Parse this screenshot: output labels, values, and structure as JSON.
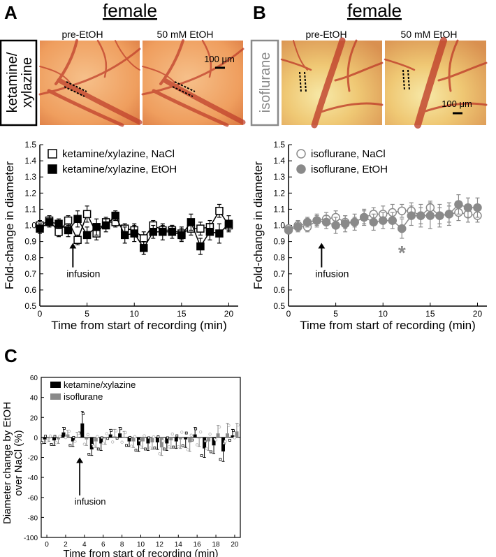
{
  "panels": {
    "A": {
      "letter": "A",
      "sex": "female",
      "anesthetic_label": [
        "ketamine/",
        "xylazine"
      ],
      "image_labels": [
        "pre-EtOH",
        "50 mM EtOH"
      ],
      "scale_bar": "100 μm"
    },
    "B": {
      "letter": "B",
      "sex": "female",
      "anesthetic_label": "isoflurane",
      "image_labels": [
        "pre-EtOH",
        "50 mM EtOH"
      ],
      "scale_bar": "100 μm",
      "significance_marker": "*"
    },
    "C": {
      "letter": "C"
    }
  },
  "colors": {
    "ketamine": "#000000",
    "isoflurane": "#8a8a8a",
    "tissue_base": "#f0a468",
    "vessel": "#c0402c"
  },
  "chart_data": [
    {
      "panel": "A",
      "type": "line",
      "x": [
        0,
        1,
        2,
        3,
        4,
        5,
        6,
        7,
        8,
        9,
        10,
        11,
        12,
        13,
        14,
        15,
        16,
        17,
        18,
        19,
        20
      ],
      "xlim": [
        0,
        21
      ],
      "xticks": [
        0,
        5,
        10,
        15,
        20
      ],
      "ylim": [
        0.5,
        1.5
      ],
      "yticks": [
        0.5,
        0.6,
        0.7,
        0.8,
        0.9,
        1.0,
        1.1,
        1.2,
        1.3,
        1.4,
        1.5
      ],
      "xlabel": "Time from start of recording (min)",
      "ylabel": "Fold-change in diameter",
      "annotation": "infusion",
      "annotation_x": 3.5,
      "series": [
        {
          "name": "ketamine/xylazine, NaCl",
          "marker": "square-open",
          "values": [
            1.0,
            1.03,
            0.96,
            1.03,
            0.91,
            1.07,
            0.95,
            1.02,
            1.02,
            0.98,
            0.97,
            0.92,
            1.0,
            0.97,
            0.97,
            0.95,
            0.98,
            0.98,
            0.99,
            1.09,
            1.0
          ],
          "errors": [
            0.03,
            0.03,
            0.03,
            0.03,
            0.03,
            0.05,
            0.04,
            0.03,
            0.03,
            0.03,
            0.04,
            0.04,
            0.03,
            0.03,
            0.03,
            0.04,
            0.04,
            0.04,
            0.04,
            0.04,
            0.03
          ]
        },
        {
          "name": "ketamine/xylazine, EtOH",
          "marker": "square-filled",
          "values": [
            0.98,
            1.02,
            1.01,
            0.97,
            1.04,
            0.94,
            0.99,
            1.0,
            1.06,
            0.94,
            0.95,
            0.86,
            0.96,
            0.96,
            0.96,
            0.94,
            1.02,
            0.87,
            0.96,
            0.95,
            1.01
          ],
          "errors": [
            0.03,
            0.03,
            0.03,
            0.04,
            0.05,
            0.05,
            0.05,
            0.04,
            0.03,
            0.05,
            0.05,
            0.04,
            0.04,
            0.05,
            0.04,
            0.04,
            0.05,
            0.05,
            0.05,
            0.06,
            0.05
          ]
        }
      ]
    },
    {
      "panel": "B",
      "type": "line",
      "x": [
        0,
        1,
        2,
        3,
        4,
        5,
        6,
        7,
        8,
        9,
        10,
        11,
        12,
        13,
        14,
        15,
        16,
        17,
        18,
        19,
        20
      ],
      "xlim": [
        0,
        21
      ],
      "xticks": [
        0,
        5,
        10,
        15,
        20
      ],
      "ylim": [
        0.5,
        1.5
      ],
      "yticks": [
        0.5,
        0.6,
        0.7,
        0.8,
        0.9,
        1.0,
        1.1,
        1.2,
        1.3,
        1.4,
        1.5
      ],
      "xlabel": "Time from start of recording (min)",
      "ylabel": "Fold-change in diameter",
      "annotation": "infusion",
      "annotation_x": 3.5,
      "series": [
        {
          "name": "isoflurane, NaCl",
          "marker": "circle-open",
          "values": [
            0.98,
            1.0,
            0.99,
            1.03,
            1.04,
            1.05,
            1.02,
            1.02,
            1.05,
            1.07,
            1.07,
            1.08,
            1.09,
            1.09,
            1.06,
            1.11,
            1.06,
            1.07,
            1.08,
            1.07,
            1.06
          ],
          "errors": [
            0.02,
            0.03,
            0.03,
            0.03,
            0.04,
            0.04,
            0.04,
            0.03,
            0.04,
            0.04,
            0.05,
            0.05,
            0.04,
            0.05,
            0.05,
            0.04,
            0.05,
            0.05,
            0.05,
            0.05,
            0.04
          ]
        },
        {
          "name": "isoflurane, EtOH",
          "marker": "circle-filled",
          "values": [
            0.97,
            0.99,
            1.02,
            1.03,
            1.02,
            1.0,
            1.01,
            1.02,
            1.05,
            1.02,
            1.03,
            1.03,
            0.98,
            1.06,
            1.06,
            1.06,
            1.06,
            1.07,
            1.13,
            1.11,
            1.11
          ],
          "errors": [
            0.02,
            0.03,
            0.03,
            0.04,
            0.04,
            0.05,
            0.05,
            0.05,
            0.05,
            0.05,
            0.05,
            0.05,
            0.06,
            0.06,
            0.07,
            0.08,
            0.07,
            0.07,
            0.06,
            0.06,
            0.06
          ]
        }
      ]
    },
    {
      "panel": "C",
      "type": "bar",
      "x": [
        0,
        1,
        2,
        3,
        4,
        5,
        6,
        7,
        8,
        9,
        10,
        11,
        12,
        13,
        14,
        15,
        16,
        17,
        18,
        19,
        20
      ],
      "xlim": [
        -0.6,
        20.6
      ],
      "xticks": [
        0,
        2,
        4,
        6,
        8,
        10,
        12,
        14,
        16,
        18,
        20
      ],
      "ylim": [
        -100,
        60
      ],
      "yticks": [
        -100,
        -80,
        -60,
        -40,
        -20,
        0,
        20,
        40,
        60
      ],
      "xlabel": "Time from start of recording (min)",
      "ylabel": [
        "Diameter change by EtOH",
        "over NaCl (%)"
      ],
      "annotation": "infusion",
      "annotation_x": 3.5,
      "series": [
        {
          "name": "ketamine/xylazine",
          "color": "#000000",
          "values": [
            -2,
            -3,
            5,
            -4,
            14,
            -12,
            -6,
            3,
            4,
            -4,
            -8,
            -6,
            -5,
            -6,
            -4,
            -2,
            3,
            -11,
            -8,
            -14,
            2
          ],
          "errors": [
            4,
            5,
            5,
            5,
            12,
            6,
            7,
            5,
            6,
            5,
            6,
            7,
            7,
            7,
            7,
            8,
            7,
            9,
            8,
            10,
            6
          ]
        },
        {
          "name": "isoflurane",
          "color": "#8a8a8a",
          "values": [
            -1,
            -2,
            3,
            0,
            -2,
            -4,
            -1,
            1,
            0,
            -4,
            -4,
            -5,
            -10,
            -3,
            -2,
            -5,
            -1,
            -4,
            4,
            4,
            6
          ],
          "errors": [
            3,
            4,
            4,
            5,
            6,
            6,
            6,
            7,
            6,
            6,
            7,
            7,
            8,
            8,
            9,
            9,
            8,
            9,
            8,
            10,
            8
          ]
        }
      ]
    }
  ]
}
